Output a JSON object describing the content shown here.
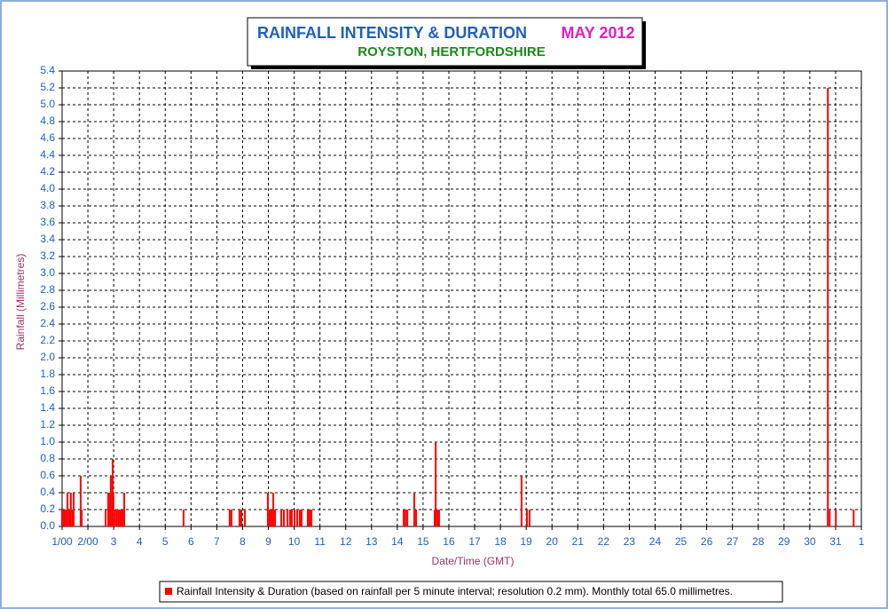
{
  "chart_data": {
    "type": "bar",
    "title": "RAINFALL INTENSITY & DURATION",
    "title_suffix": "MAY 2012",
    "subtitle": "ROYSTON, HERTFORDSHIRE",
    "y_label": "Rainfall (Millimetres)",
    "x_label": "Date/Time (GMT)",
    "grid": true,
    "xlim": [
      1,
      32
    ],
    "ylim": [
      0,
      5.4
    ],
    "xticks": [
      {
        "value": 1,
        "label": "1/00"
      },
      {
        "value": 2,
        "label": "2/00"
      },
      3,
      4,
      5,
      6,
      7,
      8,
      9,
      10,
      11,
      12,
      13,
      14,
      15,
      16,
      17,
      18,
      19,
      20,
      21,
      22,
      23,
      24,
      25,
      26,
      27,
      28,
      29,
      30,
      31,
      {
        "value": 32,
        "label": "1"
      }
    ],
    "yticks": [
      {
        "value": 0,
        "label": "0.0"
      },
      0.2,
      0.4,
      0.6,
      0.8,
      {
        "value": 1,
        "label": "1.0"
      },
      1.2,
      1.4,
      1.6,
      1.8,
      {
        "value": 2,
        "label": "2.0"
      },
      2.2,
      2.4,
      2.6,
      2.8,
      {
        "value": 3,
        "label": "3.0"
      },
      3.2,
      3.4,
      3.6,
      3.8,
      {
        "value": 4,
        "label": "4.0"
      },
      4.2,
      4.4,
      4.6,
      4.8,
      {
        "value": 5,
        "label": "5.0"
      },
      5.2,
      5.4
    ],
    "x": [
      1.0,
      1.07,
      1.14,
      1.21,
      1.28,
      1.34,
      1.41,
      1.45,
      1.72,
      1.76,
      2.69,
      2.79,
      2.86,
      2.89,
      2.96,
      2.99,
      3.06,
      3.13,
      3.2,
      3.27,
      3.34,
      3.41,
      5.71,
      7.5,
      7.57,
      7.88,
      7.95,
      8.09,
      8.98,
      9.05,
      9.12,
      9.19,
      9.26,
      9.5,
      9.6,
      9.74,
      9.84,
      9.91,
      10.02,
      10.12,
      10.22,
      10.29,
      10.53,
      10.6,
      10.67,
      14.25,
      14.32,
      14.39,
      14.66,
      14.73,
      15.45,
      15.49,
      15.56,
      15.62,
      18.82,
      19.03,
      19.13,
      30.7,
      30.77,
      31.01,
      31.7
    ],
    "series": [
      {
        "name": "Rainfall Intensity & Duration (based on rainfall per 5 minute interval; resolution 0.2 mm). Monthly total 65.0 millimetres.",
        "color": "#ff0000",
        "values": [
          0.2,
          0.2,
          0.2,
          0.4,
          0.2,
          0.4,
          0.2,
          0.4,
          0.6,
          0.2,
          0.2,
          0.4,
          0.4,
          0.6,
          0.8,
          0.4,
          0.2,
          0.2,
          0.2,
          0.2,
          0.2,
          0.4,
          0.2,
          0.2,
          0.2,
          0.2,
          0.2,
          0.2,
          0.4,
          0.2,
          0.2,
          0.4,
          0.2,
          0.2,
          0.2,
          0.2,
          0.2,
          0.2,
          0.2,
          0.2,
          0.2,
          0.2,
          0.2,
          0.2,
          0.2,
          0.2,
          0.2,
          0.2,
          0.4,
          0.2,
          0.2,
          1.0,
          0.2,
          0.2,
          0.6,
          0.2,
          0.2,
          5.2,
          0.2,
          0.2,
          0.2
        ]
      }
    ]
  }
}
